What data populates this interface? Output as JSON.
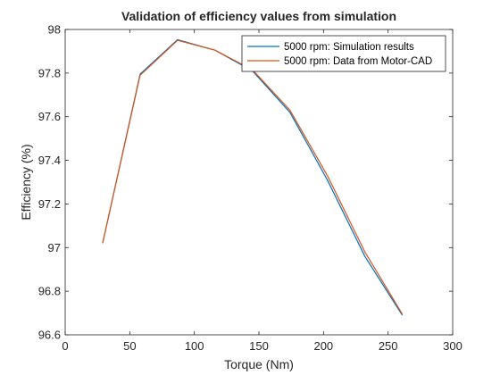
{
  "chart_data": {
    "type": "line",
    "title": "Validation of efficiency values from simulation",
    "xlabel": "Torque (Nm)",
    "ylabel": "Efficiency (%)",
    "xlim": [
      0,
      300
    ],
    "ylim": [
      96.6,
      98
    ],
    "xticks": [
      0,
      50,
      100,
      150,
      200,
      250,
      300
    ],
    "yticks": [
      96.6,
      96.8,
      97,
      97.2,
      97.4,
      97.6,
      97.8,
      98
    ],
    "grid": false,
    "legend_position": "top-right",
    "series": [
      {
        "name": "5000 rpm: Simulation results",
        "color": "#0072BD",
        "x": [
          29,
          58,
          87,
          116,
          145,
          174,
          203,
          232,
          261
        ],
        "y": [
          97.02,
          97.795,
          97.953,
          97.905,
          97.81,
          97.62,
          97.31,
          96.96,
          96.69
        ]
      },
      {
        "name": "5000 rpm: Data from Motor-CAD",
        "color": "#D95319",
        "x": [
          29,
          58,
          87,
          116,
          145,
          174,
          203,
          232,
          261
        ],
        "y": [
          97.02,
          97.79,
          97.95,
          97.905,
          97.815,
          97.63,
          97.33,
          96.98,
          96.695
        ]
      }
    ]
  }
}
